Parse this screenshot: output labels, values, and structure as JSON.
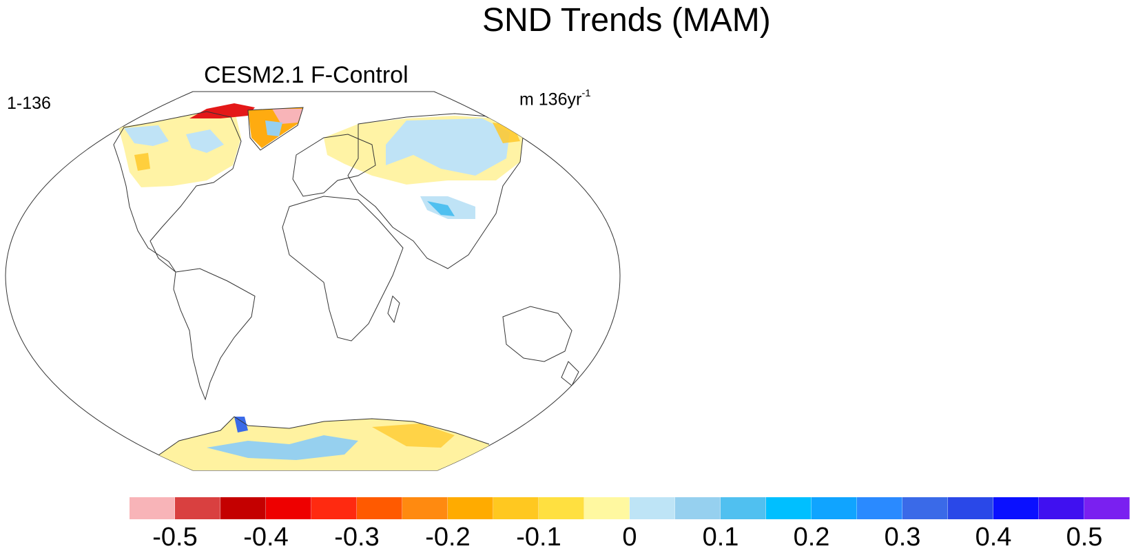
{
  "title": "SND Trends (MAM)",
  "panel": {
    "title": "CESM2.1 F-Control",
    "left_label": "1-136",
    "units_text": "m 136yr",
    "units_exponent": "-1"
  },
  "colorbar": {
    "colors": [
      "#f8b4b8",
      "#d94040",
      "#c40000",
      "#ee0000",
      "#ff2a10",
      "#ff5a00",
      "#ff8a10",
      "#ffab00",
      "#ffc820",
      "#ffe040",
      "#fff8a0",
      "#bee4f6",
      "#96d0ef",
      "#50c0f0",
      "#00bfff",
      "#10a4ff",
      "#2a8aff",
      "#3a6ae8",
      "#2a48e8",
      "#0a10ff",
      "#4010f0",
      "#7a20f0"
    ],
    "tick_labels": [
      "-0.5",
      "-0.4",
      "-0.3",
      "-0.2",
      "-0.1",
      "0",
      "0.1",
      "0.2",
      "0.3",
      "0.4",
      "0.5"
    ]
  }
}
